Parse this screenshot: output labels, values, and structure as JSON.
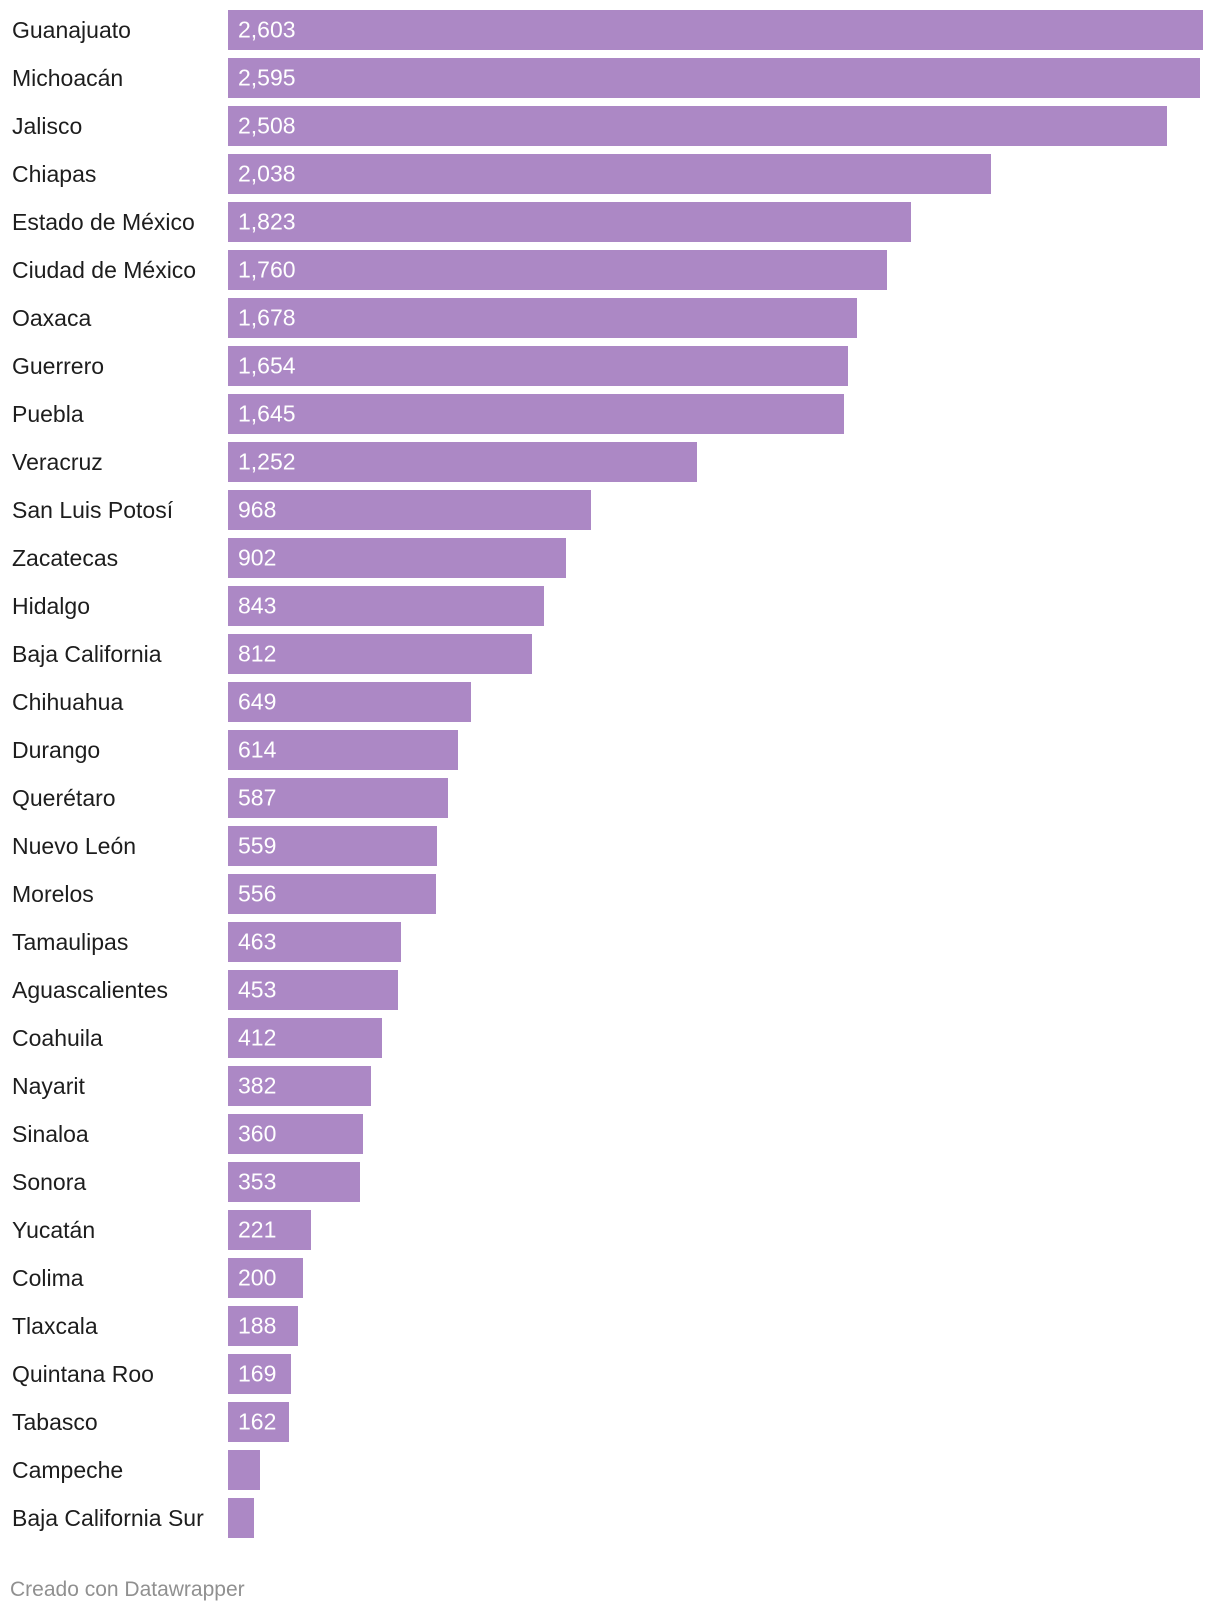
{
  "chart_data": {
    "type": "bar",
    "orientation": "horizontal",
    "title": "",
    "xlabel": "",
    "ylabel": "",
    "xlim": [
      0,
      2603
    ],
    "grid": false,
    "legend": "none",
    "colors": {
      "bar": "#ac88c5",
      "value_label": "#ffffff",
      "category_label": "#1d1d1d"
    },
    "categories": [
      "Guanajuato",
      "Michoacán",
      "Jalisco",
      "Chiapas",
      "Estado de México",
      "Ciudad de México",
      "Oaxaca",
      "Guerrero",
      "Puebla",
      "Veracruz",
      "San Luis Potosí",
      "Zacatecas",
      "Hidalgo",
      "Baja California",
      "Chihuahua",
      "Durango",
      "Querétaro",
      "Nuevo León",
      "Morelos",
      "Tamaulipas",
      "Aguascalientes",
      "Coahuila",
      "Nayarit",
      "Sinaloa",
      "Sonora",
      "Yucatán",
      "Colima",
      "Tlaxcala",
      "Quintana Roo",
      "Tabasco",
      "Campeche",
      "Baja California Sur"
    ],
    "values": [
      2603,
      2595,
      2508,
      2038,
      1823,
      1760,
      1678,
      1654,
      1645,
      1252,
      968,
      902,
      843,
      812,
      649,
      614,
      587,
      559,
      556,
      463,
      453,
      412,
      382,
      360,
      353,
      221,
      200,
      188,
      169,
      162,
      85,
      70
    ],
    "value_labels": [
      "2,603",
      "2,595",
      "2,508",
      "2,038",
      "1,823",
      "1,760",
      "1,678",
      "1,654",
      "1,645",
      "1,252",
      "968",
      "902",
      "843",
      "812",
      "649",
      "614",
      "587",
      "559",
      "556",
      "463",
      "453",
      "412",
      "382",
      "360",
      "353",
      "221",
      "200",
      "188",
      "169",
      "162",
      "",
      ""
    ]
  },
  "footer": {
    "credit": "Creado con Datawrapper"
  }
}
